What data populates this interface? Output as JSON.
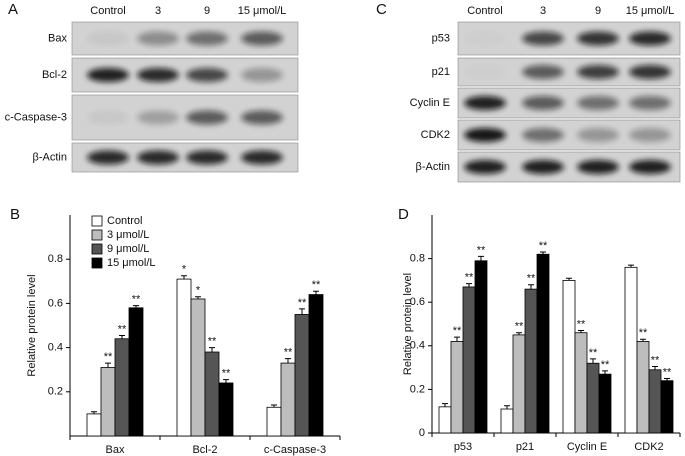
{
  "blots": [
    {
      "panel": "A",
      "lanes": [
        "Control",
        "3",
        "9",
        "15 μmol/L"
      ],
      "rows": [
        "Bax",
        "Bcl-2",
        "c-Caspase-3",
        "β-Actin"
      ]
    },
    {
      "panel": "C",
      "lanes": [
        "Control",
        "3",
        "9",
        "15 μmol/L"
      ],
      "rows": [
        "p53",
        "p21",
        "Cyclin E",
        "CDK2",
        "β-Actin"
      ]
    }
  ],
  "chart_data": [
    {
      "type": "bar",
      "panel": "B",
      "y_label": "Relative protein level",
      "categories": [
        "Bax",
        "Bcl-2",
        "c-Caspase-3"
      ],
      "series": [
        {
          "name": "Control",
          "color": "#ffffff",
          "values": [
            0.1,
            0.71,
            0.13
          ],
          "errors": [
            0.01,
            0.015,
            0.01
          ],
          "annotations": [
            null,
            "*",
            null
          ]
        },
        {
          "name": "3 μmol/L",
          "color": "#bdbdbd",
          "values": [
            0.31,
            0.62,
            0.33
          ],
          "errors": [
            0.02,
            0.01,
            0.02
          ],
          "annotations": [
            "**",
            "*",
            "**"
          ]
        },
        {
          "name": "9 μmol/L",
          "color": "#555555",
          "values": [
            0.44,
            0.38,
            0.55
          ],
          "errors": [
            0.015,
            0.02,
            0.025
          ],
          "annotations": [
            "**",
            "**",
            "**"
          ]
        },
        {
          "name": "15 μmol/L",
          "color": "#000000",
          "values": [
            0.58,
            0.24,
            0.64
          ],
          "errors": [
            0.01,
            0.015,
            0.015
          ],
          "annotations": [
            "**",
            "**",
            "**"
          ]
        }
      ],
      "ylim": [
        0,
        1
      ],
      "yticks": [
        0.2,
        0.4,
        0.6,
        0.8
      ],
      "legend": "upper left"
    },
    {
      "type": "bar",
      "panel": "D",
      "y_label": "Relative protein level",
      "categories": [
        "p53",
        "p21",
        "Cyclin E",
        "CDK2"
      ],
      "series": [
        {
          "color": "#ffffff",
          "values": [
            0.12,
            0.11,
            0.7,
            0.76
          ],
          "errors": [
            0.015,
            0.015,
            0.01,
            0.01
          ],
          "annotations": [
            null,
            null,
            null,
            null
          ]
        },
        {
          "color": "#bdbdbd",
          "values": [
            0.42,
            0.45,
            0.46,
            0.42
          ],
          "errors": [
            0.02,
            0.01,
            0.01,
            0.01
          ],
          "annotations": [
            "**",
            "**",
            "**",
            "**"
          ]
        },
        {
          "color": "#555555",
          "values": [
            0.67,
            0.66,
            0.32,
            0.29
          ],
          "errors": [
            0.015,
            0.02,
            0.02,
            0.015
          ],
          "annotations": [
            "**",
            "**",
            "**",
            "**"
          ]
        },
        {
          "color": "#000000",
          "values": [
            0.79,
            0.82,
            0.27,
            0.24
          ],
          "errors": [
            0.02,
            0.01,
            0.015,
            0.01
          ],
          "annotations": [
            "**",
            "**",
            "**",
            "**"
          ]
        }
      ],
      "ylim": [
        0,
        1
      ],
      "yticks": [
        0,
        0.2,
        0.4,
        0.6,
        0.8
      ]
    }
  ]
}
